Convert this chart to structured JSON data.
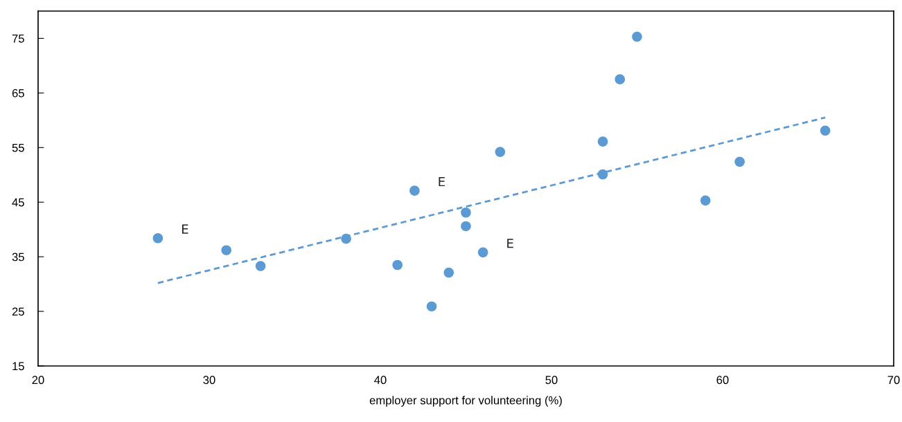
{
  "chart_data": {
    "type": "scatter",
    "xlabel": "employer support for volunteering (%)",
    "xlim": [
      20,
      70
    ],
    "xticks": [
      20,
      30,
      40,
      50,
      60,
      70
    ],
    "ylim": [
      15,
      80
    ],
    "yticks": [
      15,
      25,
      35,
      45,
      55,
      65,
      75
    ],
    "grid": false,
    "legend": false,
    "series": [
      {
        "marker": "circle",
        "color": "#5b9bd5",
        "x": [
          27,
          31,
          33,
          38,
          41,
          42,
          43,
          44,
          45,
          45,
          46,
          47,
          53,
          53,
          54,
          55,
          59,
          61,
          66
        ],
        "values": [
          38.4,
          36.2,
          33.3,
          38.3,
          33.5,
          47.1,
          25.9,
          32.1,
          43.1,
          40.6,
          35.8,
          54.2,
          56.1,
          50.1,
          67.5,
          75.3,
          45.3,
          52.4,
          58.1
        ]
      },
      {
        "type": "line",
        "marker": "none",
        "color": "#5b9bd5",
        "line_style": "dashed",
        "x": [
          27,
          66
        ],
        "values": [
          30.2,
          60.5
        ]
      }
    ],
    "annotations": [
      {
        "text": "E",
        "x": 27,
        "y": 38.4
      },
      {
        "text": "E",
        "x": 42,
        "y": 47.1
      },
      {
        "text": "E",
        "x": 46,
        "y": 35.8
      }
    ]
  }
}
